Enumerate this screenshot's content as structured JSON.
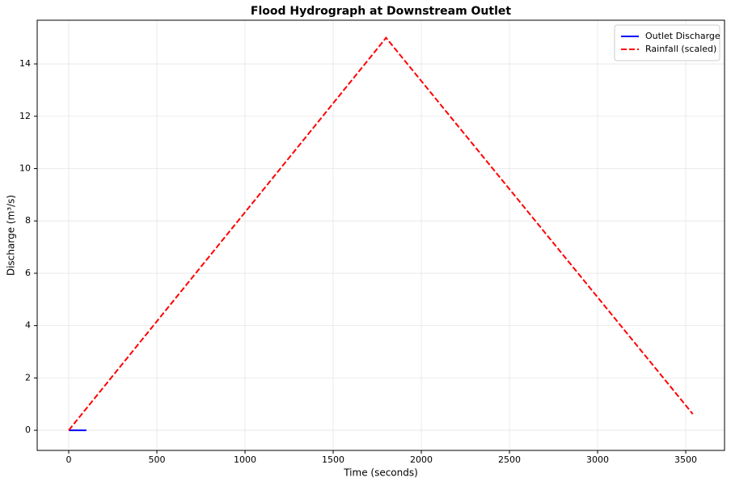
{
  "chart_data": {
    "type": "line",
    "title": "Flood Hydrograph at Downstream Outlet",
    "x_label": "Time (seconds)",
    "y_label": "Discharge (m³/s)",
    "series": [
      {
        "name": "Outlet Discharge",
        "color": "#0000ff",
        "dash": "solid",
        "x": [
          0,
          100
        ],
        "values": [
          0,
          0
        ]
      },
      {
        "name": "Rainfall (scaled)",
        "color": "#ff0000",
        "dash": "dashed",
        "x": [
          0,
          1720,
          1800,
          3540
        ],
        "values": [
          0,
          14.33,
          15,
          0.62
        ]
      }
    ],
    "xlim": [
      -179,
      3720
    ],
    "ylim": [
      -0.77,
      15.67
    ],
    "xticks": [
      0,
      500,
      1000,
      1500,
      2000,
      2500,
      3000,
      3500
    ],
    "yticks": [
      0,
      2,
      4,
      6,
      8,
      10,
      12,
      14
    ],
    "grid": true,
    "legend": "upper right"
  }
}
